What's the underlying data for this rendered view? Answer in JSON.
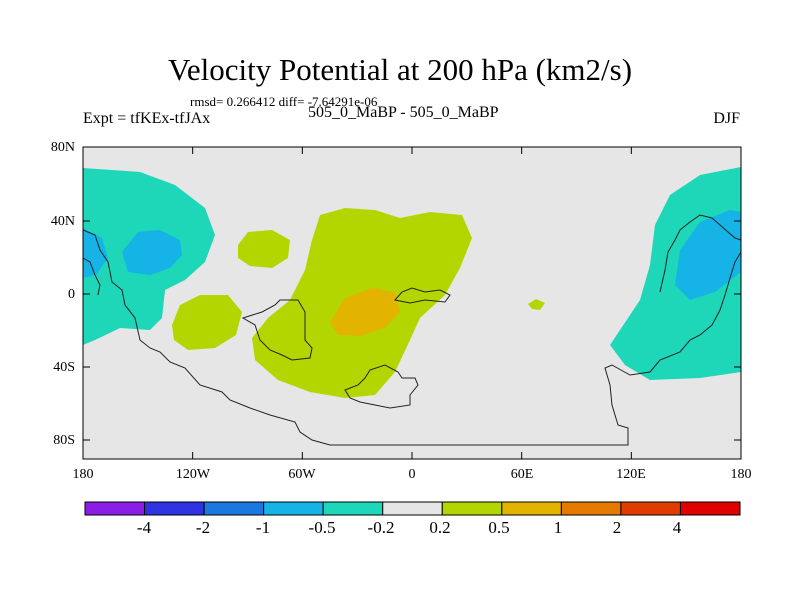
{
  "header": {
    "title": "Velocity Potential at 200 hPa (km2/s)",
    "stats": "rmsd= 0.266412 diff= -7.64291e-06",
    "left_label": "Expt = tfKEx-tfJAx",
    "center_label": "505_0_MaBP - 505_0_MaBP",
    "right_label": "DJF"
  },
  "map": {
    "lon_ticks": [
      "180",
      "120W",
      "60W",
      "0",
      "60E",
      "120E",
      "180"
    ],
    "lat_ticks": [
      "80N",
      "40N",
      "0",
      "40S",
      "80S"
    ],
    "background_color": "#e6e6e6"
  },
  "colorbar": {
    "labels": [
      "-4",
      "-2",
      "-1",
      "-0.5",
      "-0.2",
      "0.2",
      "0.5",
      "1",
      "2",
      "4"
    ],
    "colors": [
      "#8a1ee6",
      "#2e32e0",
      "#1a78e0",
      "#16b4e6",
      "#1ed6b8",
      "#e6e6e6",
      "#b4d600",
      "#e2b400",
      "#e47a00",
      "#e03c00",
      "#e00000"
    ]
  }
}
